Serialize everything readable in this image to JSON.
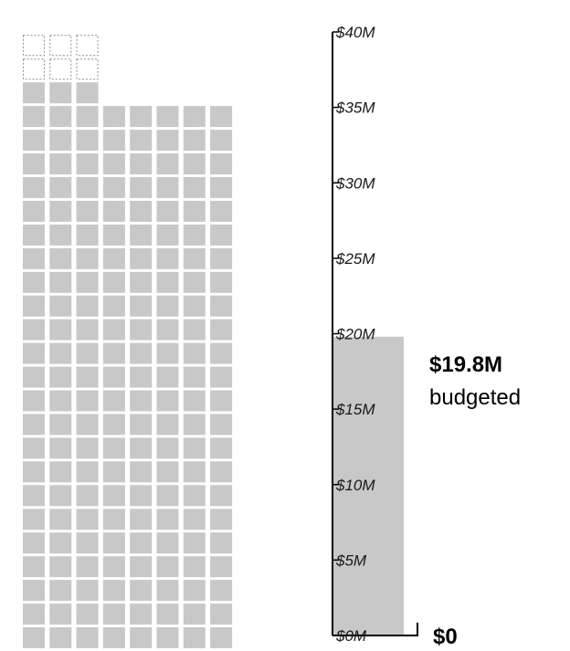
{
  "chart_data": [
    {
      "type": "waffle",
      "columns": 8,
      "column_heights_in_cells": [
        26,
        26,
        26,
        23,
        23,
        23,
        23,
        23
      ],
      "filled_cells_per_column": [
        24,
        24,
        24,
        23,
        23,
        23,
        23,
        23
      ],
      "filled_color": "#c8c8c8",
      "empty_style": "dashed-outline"
    },
    {
      "type": "bar",
      "title": "",
      "xlabel": "",
      "ylabel": "",
      "categories": [
        ""
      ],
      "values": [
        19.8
      ],
      "ylim": [
        0,
        40
      ],
      "ticks": [
        {
          "value": 0,
          "label": "$0M"
        },
        {
          "value": 5,
          "label": "$5M"
        },
        {
          "value": 10,
          "label": "$10M"
        },
        {
          "value": 15,
          "label": "$15M"
        },
        {
          "value": 20,
          "label": "$20M"
        },
        {
          "value": 25,
          "label": "$25M"
        },
        {
          "value": 30,
          "label": "$30M"
        },
        {
          "value": 35,
          "label": "$35M"
        },
        {
          "value": 40,
          "label": "$40M"
        }
      ],
      "bar_color": "#c8c8c8",
      "axis_color": "#000000",
      "grid": false,
      "legend": "none"
    }
  ],
  "callout": {
    "value_label": "$19.8M",
    "caption": "budgeted"
  },
  "baseline_label": "$0"
}
